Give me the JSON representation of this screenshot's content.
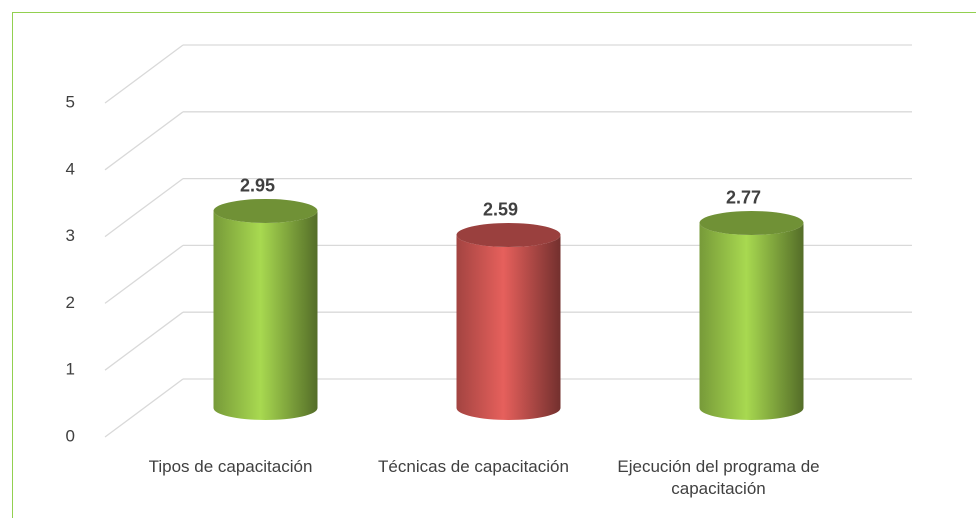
{
  "chart_data": {
    "type": "bar3d",
    "categories": [
      "Tipos de capacitación",
      "Técnicas de capacitación",
      "Ejecución del programa de capacitación"
    ],
    "values": [
      2.95,
      2.59,
      2.77
    ],
    "colors": [
      "#8cb543",
      "#c0504d",
      "#8cb543"
    ],
    "ylim": [
      0,
      5
    ],
    "yticks": [
      0,
      1,
      2,
      3,
      4,
      5
    ],
    "grid": true
  }
}
